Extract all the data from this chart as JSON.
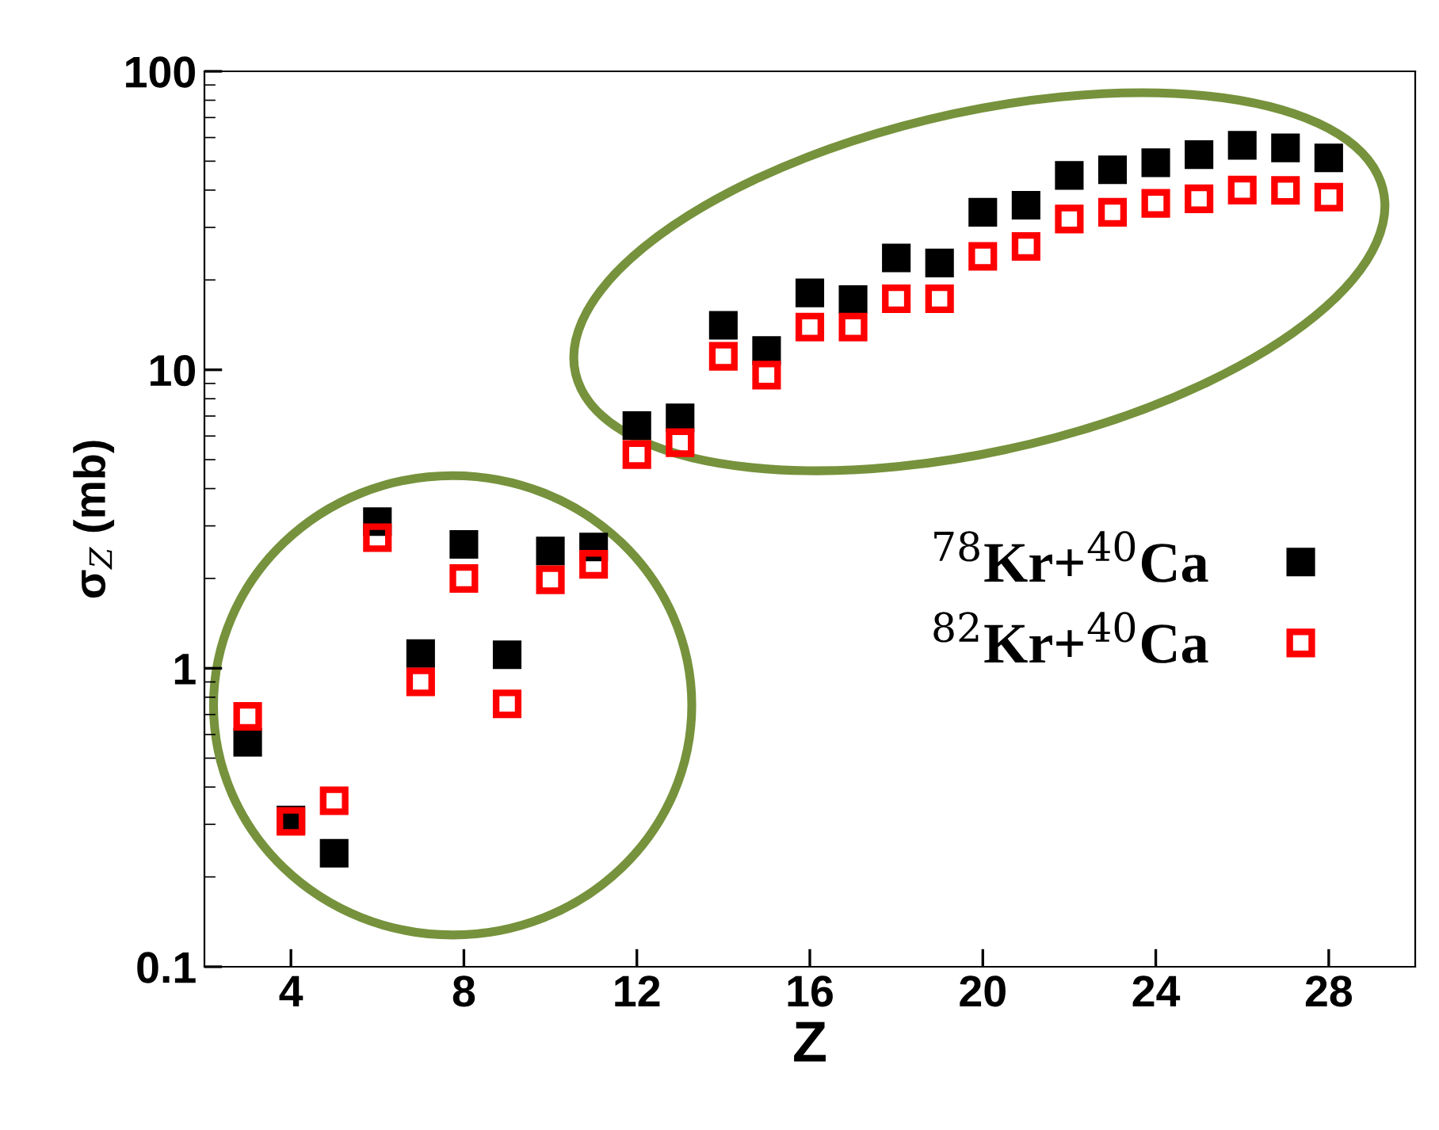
{
  "chart_data": {
    "type": "scatter",
    "xlabel": "Z",
    "ylabel": "σ$_{Z}$ (mb)",
    "x": [
      3,
      4,
      5,
      6,
      7,
      8,
      9,
      10,
      11,
      12,
      13,
      14,
      15,
      16,
      17,
      18,
      19,
      20,
      21,
      22,
      23,
      24,
      25,
      26,
      27,
      28
    ],
    "series": [
      {
        "name": "$^{78}$Kr+$^{40}$Ca",
        "color": "#000000",
        "marker": "square",
        "values": [
          0.565,
          0.31,
          0.24,
          3.1,
          1.12,
          2.6,
          1.11,
          2.47,
          2.55,
          6.5,
          6.9,
          14.1,
          11.6,
          18.1,
          17.2,
          23.7,
          22.8,
          33.7,
          35.6,
          44.8,
          46.8,
          49.4,
          52.6,
          56.5,
          55.4,
          51.3
        ]
      },
      {
        "name": "$^{82}$Kr+$^{40}$Ca",
        "color": "#ff0000",
        "marker": "square",
        "values": [
          0.69,
          0.307,
          0.36,
          2.74,
          0.9,
          2.0,
          0.76,
          1.98,
          2.23,
          5.2,
          5.7,
          11.1,
          9.6,
          13.9,
          13.9,
          17.3,
          17.3,
          24.0,
          25.9,
          32.0,
          33.7,
          36.1,
          37.4,
          40.0,
          39.9,
          37.9
        ]
      }
    ],
    "log": "y",
    "xlim": [
      2,
      30
    ],
    "ylim": [
      0.1,
      100
    ],
    "xticks": [
      4,
      8,
      12,
      16,
      20,
      24,
      28
    ],
    "yticks": [
      {
        "value": 0.1,
        "label": "0.1"
      },
      1,
      10,
      100
    ],
    "grid": false,
    "legend": "right"
  }
}
